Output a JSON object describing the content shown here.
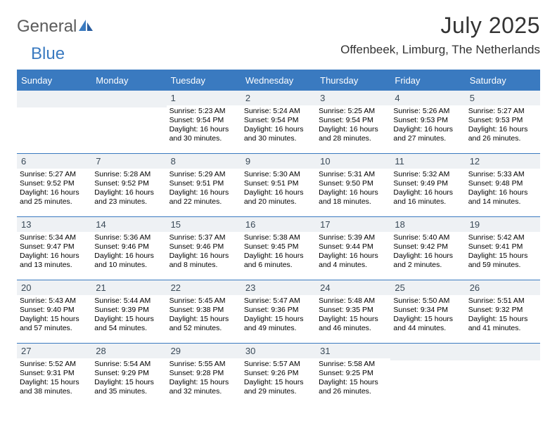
{
  "brand": {
    "part1": "General",
    "part2": "Blue"
  },
  "title": "July 2025",
  "subtitle": "Offenbeek, Limburg, The Netherlands",
  "colors": {
    "accent": "#3a7ac0",
    "header_text": "#ffffff",
    "daynum_bg": "#eef1f4",
    "daynum_text": "#3a4a58",
    "body_text": "#000000",
    "logo_gray": "#5b5b5b"
  },
  "daysOfWeek": [
    "Sunday",
    "Monday",
    "Tuesday",
    "Wednesday",
    "Thursday",
    "Friday",
    "Saturday"
  ],
  "weeks": [
    [
      null,
      null,
      {
        "n": "1",
        "sunrise": "5:23 AM",
        "sunset": "9:54 PM",
        "daylight": "16 hours and 30 minutes."
      },
      {
        "n": "2",
        "sunrise": "5:24 AM",
        "sunset": "9:54 PM",
        "daylight": "16 hours and 30 minutes."
      },
      {
        "n": "3",
        "sunrise": "5:25 AM",
        "sunset": "9:54 PM",
        "daylight": "16 hours and 28 minutes."
      },
      {
        "n": "4",
        "sunrise": "5:26 AM",
        "sunset": "9:53 PM",
        "daylight": "16 hours and 27 minutes."
      },
      {
        "n": "5",
        "sunrise": "5:27 AM",
        "sunset": "9:53 PM",
        "daylight": "16 hours and 26 minutes."
      }
    ],
    [
      {
        "n": "6",
        "sunrise": "5:27 AM",
        "sunset": "9:52 PM",
        "daylight": "16 hours and 25 minutes."
      },
      {
        "n": "7",
        "sunrise": "5:28 AM",
        "sunset": "9:52 PM",
        "daylight": "16 hours and 23 minutes."
      },
      {
        "n": "8",
        "sunrise": "5:29 AM",
        "sunset": "9:51 PM",
        "daylight": "16 hours and 22 minutes."
      },
      {
        "n": "9",
        "sunrise": "5:30 AM",
        "sunset": "9:51 PM",
        "daylight": "16 hours and 20 minutes."
      },
      {
        "n": "10",
        "sunrise": "5:31 AM",
        "sunset": "9:50 PM",
        "daylight": "16 hours and 18 minutes."
      },
      {
        "n": "11",
        "sunrise": "5:32 AM",
        "sunset": "9:49 PM",
        "daylight": "16 hours and 16 minutes."
      },
      {
        "n": "12",
        "sunrise": "5:33 AM",
        "sunset": "9:48 PM",
        "daylight": "16 hours and 14 minutes."
      }
    ],
    [
      {
        "n": "13",
        "sunrise": "5:34 AM",
        "sunset": "9:47 PM",
        "daylight": "16 hours and 13 minutes."
      },
      {
        "n": "14",
        "sunrise": "5:36 AM",
        "sunset": "9:46 PM",
        "daylight": "16 hours and 10 minutes."
      },
      {
        "n": "15",
        "sunrise": "5:37 AM",
        "sunset": "9:46 PM",
        "daylight": "16 hours and 8 minutes."
      },
      {
        "n": "16",
        "sunrise": "5:38 AM",
        "sunset": "9:45 PM",
        "daylight": "16 hours and 6 minutes."
      },
      {
        "n": "17",
        "sunrise": "5:39 AM",
        "sunset": "9:44 PM",
        "daylight": "16 hours and 4 minutes."
      },
      {
        "n": "18",
        "sunrise": "5:40 AM",
        "sunset": "9:42 PM",
        "daylight": "16 hours and 2 minutes."
      },
      {
        "n": "19",
        "sunrise": "5:42 AM",
        "sunset": "9:41 PM",
        "daylight": "15 hours and 59 minutes."
      }
    ],
    [
      {
        "n": "20",
        "sunrise": "5:43 AM",
        "sunset": "9:40 PM",
        "daylight": "15 hours and 57 minutes."
      },
      {
        "n": "21",
        "sunrise": "5:44 AM",
        "sunset": "9:39 PM",
        "daylight": "15 hours and 54 minutes."
      },
      {
        "n": "22",
        "sunrise": "5:45 AM",
        "sunset": "9:38 PM",
        "daylight": "15 hours and 52 minutes."
      },
      {
        "n": "23",
        "sunrise": "5:47 AM",
        "sunset": "9:36 PM",
        "daylight": "15 hours and 49 minutes."
      },
      {
        "n": "24",
        "sunrise": "5:48 AM",
        "sunset": "9:35 PM",
        "daylight": "15 hours and 46 minutes."
      },
      {
        "n": "25",
        "sunrise": "5:50 AM",
        "sunset": "9:34 PM",
        "daylight": "15 hours and 44 minutes."
      },
      {
        "n": "26",
        "sunrise": "5:51 AM",
        "sunset": "9:32 PM",
        "daylight": "15 hours and 41 minutes."
      }
    ],
    [
      {
        "n": "27",
        "sunrise": "5:52 AM",
        "sunset": "9:31 PM",
        "daylight": "15 hours and 38 minutes."
      },
      {
        "n": "28",
        "sunrise": "5:54 AM",
        "sunset": "9:29 PM",
        "daylight": "15 hours and 35 minutes."
      },
      {
        "n": "29",
        "sunrise": "5:55 AM",
        "sunset": "9:28 PM",
        "daylight": "15 hours and 32 minutes."
      },
      {
        "n": "30",
        "sunrise": "5:57 AM",
        "sunset": "9:26 PM",
        "daylight": "15 hours and 29 minutes."
      },
      {
        "n": "31",
        "sunrise": "5:58 AM",
        "sunset": "9:25 PM",
        "daylight": "15 hours and 26 minutes."
      },
      null,
      null
    ]
  ],
  "labels": {
    "sunrise": "Sunrise:",
    "sunset": "Sunset:",
    "daylight": "Daylight:"
  }
}
